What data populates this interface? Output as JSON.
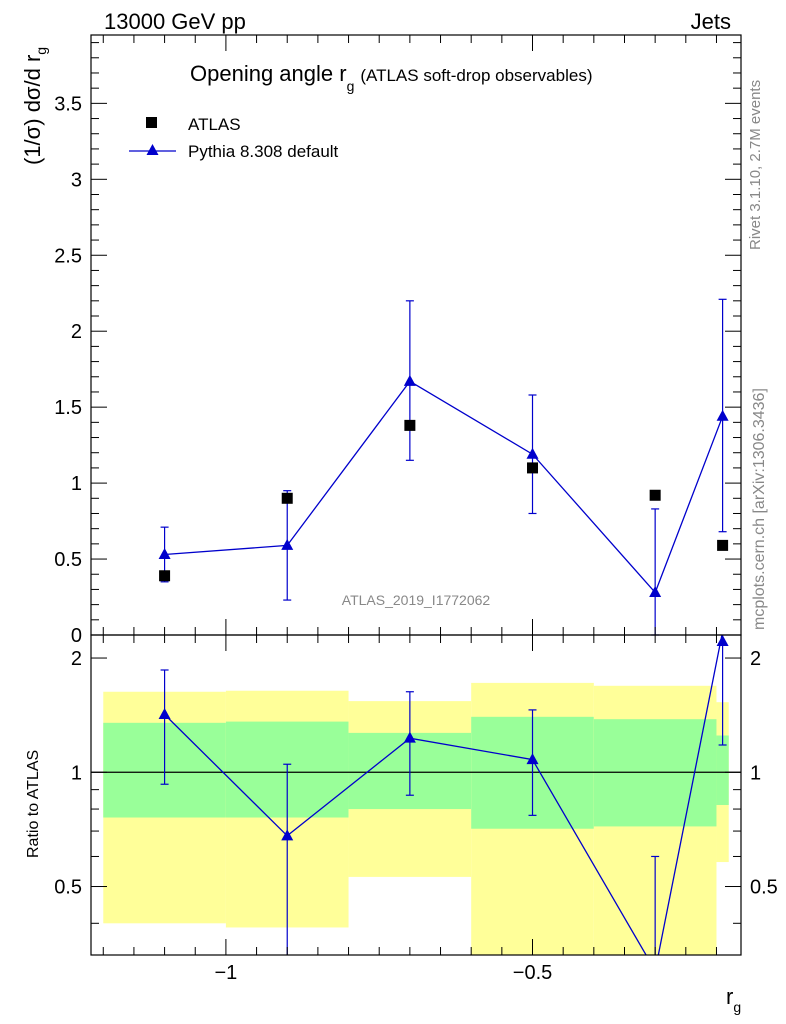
{
  "header": {
    "left": "13000 GeV pp",
    "right": "Jets"
  },
  "title": {
    "main": "Opening angle r",
    "main_sub": "g",
    "detail": "(ATLAS soft-drop observables)"
  },
  "side_labels": {
    "rivet": "Rivet 3.1.10,  2.7M events",
    "mcplots": "mcplots.cern.ch [arXiv:1306.3436]"
  },
  "watermark": "ATLAS_2019_I1772062",
  "legend": {
    "data": "ATLAS",
    "mc": "Pythia 8.308 default"
  },
  "axes": {
    "ylabel_main": "(1/σ) dσ/d r",
    "ylabel_main_sub": "g",
    "ylabel_ratio": "Ratio to ATLAS",
    "xlabel": "r",
    "xlabel_sub": "g"
  },
  "colors": {
    "mc": "#0000cc",
    "data": "#000000",
    "band_inner": "#99ff99",
    "band_outer": "#ffff99"
  },
  "chart_data": [
    {
      "type": "scatter",
      "panel": "main",
      "xlim": [
        -1.22,
        -0.16
      ],
      "ylim": [
        0,
        3.95
      ],
      "xticks": [
        -1,
        -0.5
      ],
      "xticklabels": [
        "−1",
        "−0.5"
      ],
      "yticks": [
        0,
        0.5,
        1,
        1.5,
        2,
        2.5,
        3,
        3.5
      ],
      "yticklabels": [
        "0",
        "0.5",
        "1",
        "1.5",
        "2",
        "2.5",
        "3",
        "3.5"
      ],
      "bins": [
        -1.2,
        -1.0,
        -0.8,
        -0.6,
        -0.4,
        -0.2,
        -0.18
      ],
      "series": [
        {
          "name": "ATLAS",
          "marker": "square",
          "x": [
            -1.1,
            -0.9,
            -0.7,
            -0.5,
            -0.3,
            -0.19
          ],
          "y": [
            0.39,
            0.9,
            1.38,
            1.1,
            0.92,
            0.59
          ],
          "err_low": [
            0.02,
            0.02,
            0.02,
            0.02,
            0.02,
            0.02
          ],
          "err_high": [
            0.02,
            0.02,
            0.02,
            0.02,
            0.02,
            0.02
          ]
        },
        {
          "name": "Pythia 8.308 default",
          "marker": "triangle",
          "x": [
            -1.1,
            -0.9,
            -0.7,
            -0.5,
            -0.3,
            -0.19
          ],
          "y": [
            0.53,
            0.59,
            1.67,
            1.19,
            0.28,
            1.44
          ],
          "err_low": [
            0.18,
            0.36,
            0.52,
            0.39,
            0.55,
            0.76
          ],
          "err_high": [
            0.18,
            0.36,
            0.53,
            0.39,
            0.55,
            0.77
          ]
        }
      ]
    },
    {
      "type": "scatter",
      "panel": "ratio",
      "xlim": [
        -1.22,
        -0.16
      ],
      "ylim": [
        0.33,
        2.3
      ],
      "yscale": "log",
      "reference_line": 1,
      "yticks": [
        0.5,
        1,
        2
      ],
      "yticklabels": [
        "0.5",
        "1",
        "2"
      ],
      "bands": {
        "edges": [
          -1.2,
          -1.0,
          -0.8,
          -0.6,
          -0.4,
          -0.2,
          -0.18
        ],
        "inner_low": [
          0.76,
          0.76,
          0.8,
          0.71,
          0.72,
          0.82
        ],
        "inner_high": [
          1.35,
          1.36,
          1.27,
          1.4,
          1.38,
          1.25
        ],
        "outer_low": [
          0.4,
          0.39,
          0.53,
          0.3,
          0.3,
          0.58
        ],
        "outer_high": [
          1.63,
          1.64,
          1.54,
          1.72,
          1.69,
          1.53
        ]
      },
      "series": [
        {
          "name": "Pythia 8.308 default",
          "x": [
            -1.1,
            -0.9,
            -0.7,
            -0.5,
            -0.3,
            -0.19
          ],
          "y": [
            1.42,
            0.68,
            1.23,
            1.08,
            0.3,
            2.35
          ],
          "err_low": [
            0.49,
            0.39,
            0.36,
            0.31,
            0.3,
            1.17
          ],
          "err_high": [
            0.44,
            0.37,
            0.4,
            0.38,
            0.3,
            0.5
          ]
        }
      ]
    }
  ]
}
